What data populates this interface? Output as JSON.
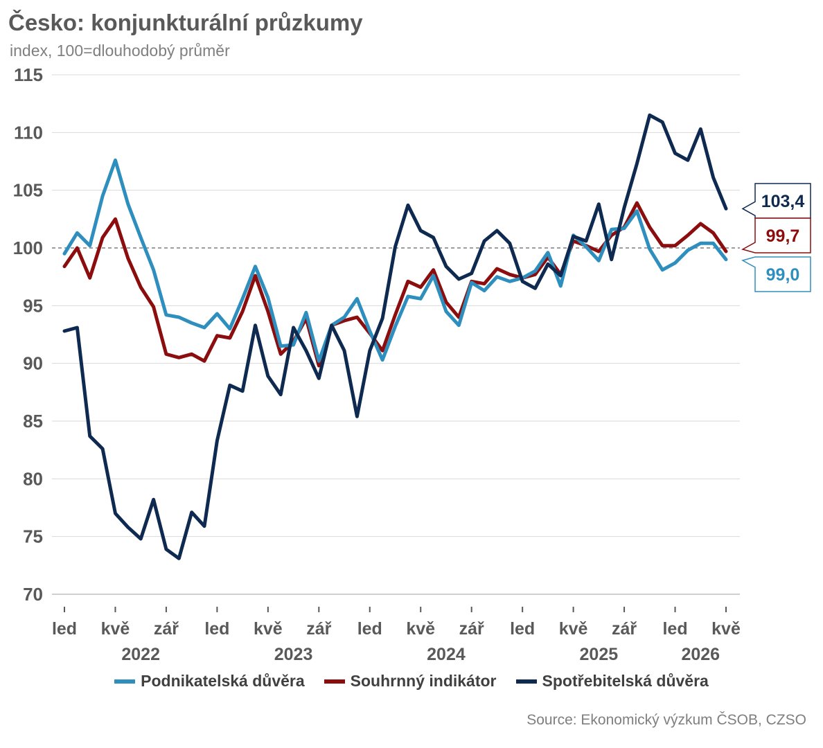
{
  "title": "Česko: konjunkturální průzkumy",
  "subtitle": "index, 100=dlouhodobý průměr",
  "source": "Source: Ekonomický výzkum ČSOB, CZSO",
  "colors": {
    "business": "#2E8FBE",
    "composite": "#8B0D0D",
    "consumer": "#0F2A50",
    "grid": "#D9D9D9",
    "axis_text": "#595959",
    "reference_line": "#7F7F7F"
  },
  "chart_data": {
    "type": "line",
    "x_start": "2022-01",
    "x_end": "2026-05",
    "x_tick_labels": [
      {
        "month": "2022-01",
        "label": "led"
      },
      {
        "month": "2022-05",
        "label": "kvě"
      },
      {
        "month": "2022-09",
        "label": "zář"
      },
      {
        "month": "2023-01",
        "label": "led"
      },
      {
        "month": "2023-05",
        "label": "kvě"
      },
      {
        "month": "2023-09",
        "label": "zář"
      },
      {
        "month": "2024-01",
        "label": "led"
      },
      {
        "month": "2024-05",
        "label": "kvě"
      },
      {
        "month": "2024-09",
        "label": "zář"
      },
      {
        "month": "2025-01",
        "label": "led"
      },
      {
        "month": "2025-05",
        "label": "kvě"
      },
      {
        "month": "2025-09",
        "label": "zář"
      },
      {
        "month": "2026-01",
        "label": "led"
      },
      {
        "month": "2026-05",
        "label": "kvě"
      }
    ],
    "year_labels": [
      {
        "month": "2022-07",
        "label": "2022"
      },
      {
        "month": "2023-07",
        "label": "2023"
      },
      {
        "month": "2024-07",
        "label": "2024"
      },
      {
        "month": "2025-07",
        "label": "2025"
      },
      {
        "month": "2026-03",
        "label": "2026"
      }
    ],
    "ylim": [
      70,
      115
    ],
    "yticks": [
      70,
      75,
      80,
      85,
      90,
      95,
      100,
      105,
      110,
      115
    ],
    "reference_line": 100,
    "grid": true,
    "legend_position": "bottom",
    "series": [
      {
        "name": "Podnikatelská důvěra",
        "color": "#2E8FBE",
        "end_label": "99,0",
        "values": [
          99.5,
          101.3,
          100.2,
          104.5,
          107.6,
          103.8,
          100.9,
          98.1,
          94.2,
          94.0,
          93.5,
          93.1,
          94.3,
          93.0,
          95.6,
          98.4,
          95.7,
          91.5,
          91.6,
          94.4,
          90.2,
          93.3,
          94.0,
          95.6,
          92.8,
          90.3,
          93.2,
          95.8,
          95.6,
          97.6,
          94.5,
          93.3,
          97.0,
          96.3,
          97.5,
          97.1,
          97.4,
          98.0,
          99.6,
          96.7,
          101.1,
          100.1,
          98.9,
          101.6,
          101.7,
          103.2,
          99.9,
          98.1,
          98.7,
          99.8,
          100.4,
          100.4,
          99.0
        ]
      },
      {
        "name": "Souhrnný indikátor",
        "color": "#8B0D0D",
        "end_label": "99,7",
        "values": [
          98.4,
          100.0,
          97.4,
          100.9,
          102.5,
          99.1,
          96.6,
          94.9,
          90.8,
          90.5,
          90.8,
          90.2,
          92.4,
          92.2,
          94.5,
          97.6,
          94.5,
          90.8,
          91.9,
          93.9,
          89.8,
          93.3,
          93.7,
          94.0,
          92.6,
          91.1,
          94.2,
          97.1,
          96.6,
          98.1,
          95.3,
          94.0,
          97.1,
          96.9,
          98.2,
          97.7,
          97.4,
          97.7,
          99.2,
          97.7,
          100.6,
          100.2,
          99.7,
          101.1,
          101.8,
          103.9,
          101.8,
          100.2,
          100.2,
          101.1,
          102.1,
          101.3,
          99.7
        ]
      },
      {
        "name": "Spotřebitelská důvěra",
        "color": "#0F2A50",
        "end_label": "103,4",
        "values": [
          92.8,
          93.1,
          83.7,
          82.6,
          77.0,
          75.8,
          74.8,
          78.2,
          73.9,
          73.1,
          77.1,
          75.9,
          83.3,
          88.1,
          87.6,
          93.3,
          88.9,
          87.3,
          93.1,
          91.1,
          88.7,
          93.3,
          91.1,
          85.4,
          91.1,
          93.9,
          100.1,
          103.7,
          101.5,
          100.9,
          98.4,
          97.3,
          97.8,
          100.6,
          101.5,
          100.4,
          97.1,
          96.5,
          98.6,
          97.6,
          101.0,
          100.6,
          103.8,
          99.0,
          103.5,
          107.3,
          111.5,
          110.9,
          108.2,
          107.6,
          110.3,
          106.1,
          103.4
        ]
      }
    ]
  }
}
